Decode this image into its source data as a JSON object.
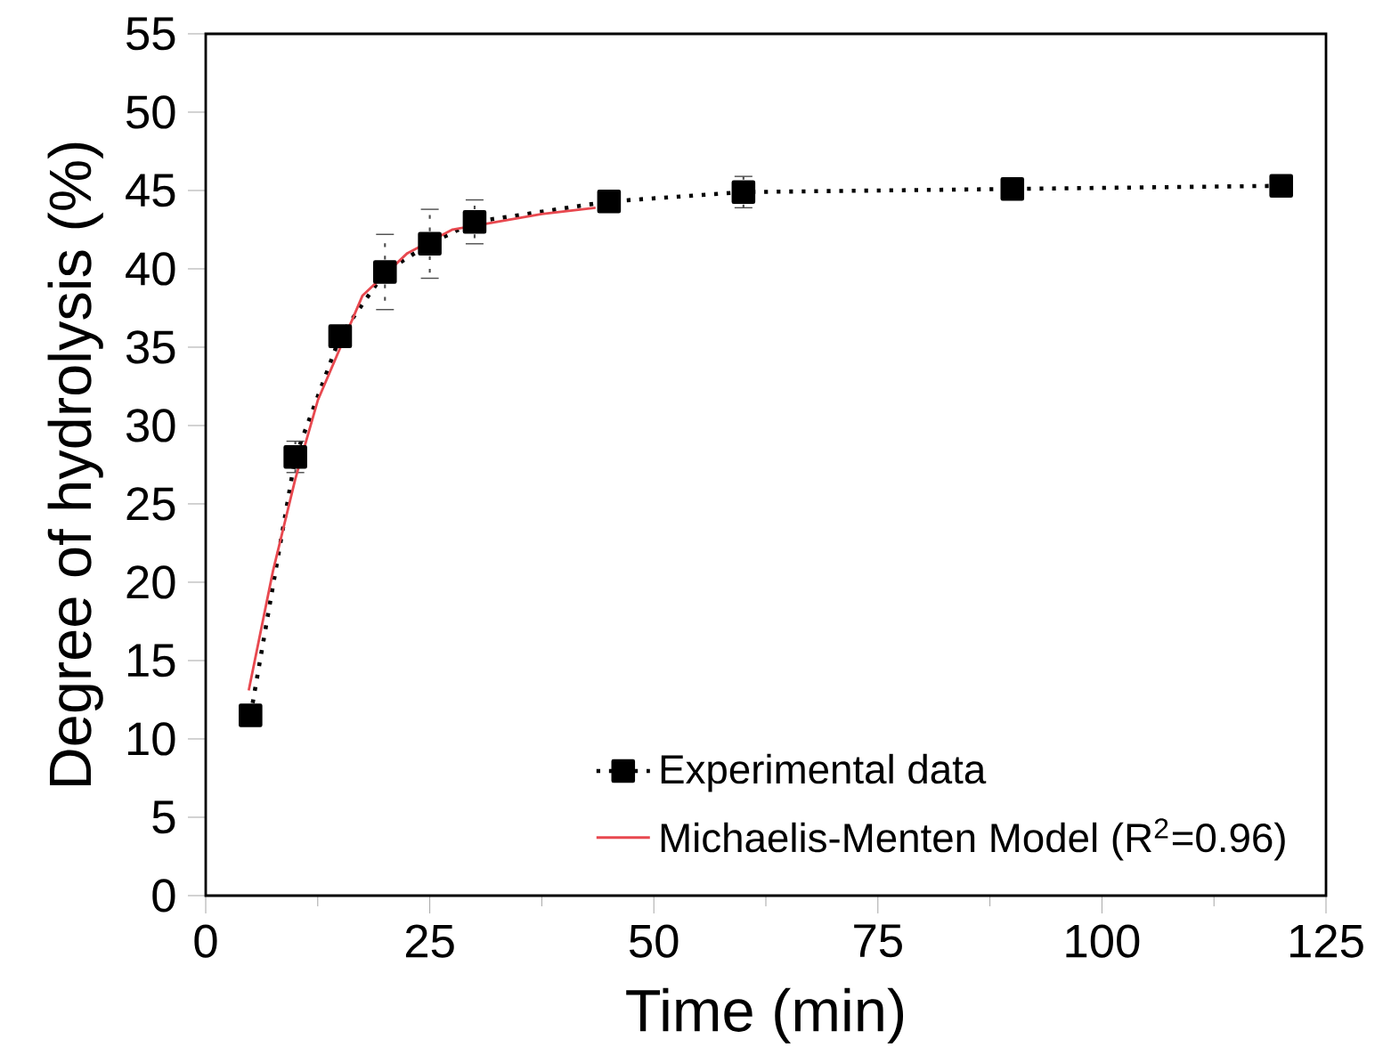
{
  "chart_data": {
    "type": "line",
    "xlabel": "Time (min)",
    "ylabel": "Degree of hydrolysis (%)",
    "xlim": [
      0,
      125
    ],
    "xticks": [
      0,
      25,
      50,
      75,
      100,
      125
    ],
    "ylim": [
      0,
      55
    ],
    "yticks": [
      0,
      5,
      10,
      15,
      20,
      25,
      30,
      35,
      40,
      45,
      50,
      55
    ],
    "legend": "bottom right",
    "series": [
      {
        "name": "Experimental data",
        "color": "#000000",
        "marker": "square",
        "line_style": "dotted",
        "x": [
          5,
          10,
          15,
          20,
          25,
          30,
          45,
          60,
          90,
          120
        ],
        "values": [
          11.5,
          28.0,
          35.7,
          39.8,
          41.6,
          43.0,
          44.3,
          44.9,
          45.1,
          45.3
        ],
        "errors": [
          null,
          1.0,
          null,
          2.4,
          2.2,
          1.4,
          null,
          1.0,
          null,
          null
        ]
      },
      {
        "name": "Michaelis-Menten Model (R$^{2}$=0.96)",
        "color": "#e8484f",
        "marker": "none",
        "line_style": "solid",
        "x": [
          4.8,
          7.5,
          10.0,
          12.5,
          17.5,
          22.5,
          27.5,
          37.5,
          43.5
        ],
        "values": [
          13.1,
          20.7,
          26.6,
          31.6,
          38.3,
          41.0,
          42.5,
          43.5,
          43.9
        ]
      }
    ]
  }
}
